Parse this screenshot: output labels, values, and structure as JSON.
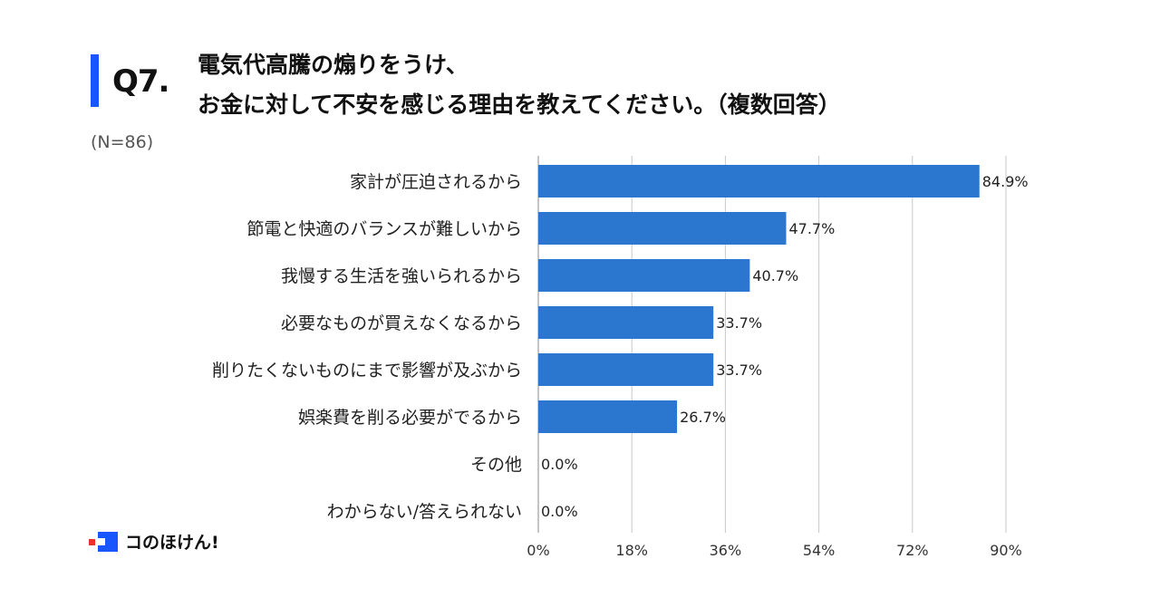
{
  "header": {
    "question_label": "Q7.",
    "title_line1": "電気代高騰の煽りをうけ、",
    "title_line2": "お金に対して不安を感じる理由を教えてください。（複数回答）",
    "sample_size": "(N=86)"
  },
  "colors": {
    "accent": "#1a56ff",
    "bar": "#2b77d0",
    "grid": "#c8c8c8",
    "logo_dot": "#e8322b"
  },
  "chart_data": {
    "type": "bar",
    "orientation": "horizontal",
    "categories": [
      "家計が圧迫されるから",
      "節電と快適のバランスが難しいから",
      "我慢する生活を強いられるから",
      "必要なものが買えなくなるから",
      "削りたくないものにまで影響が及ぶから",
      "娯楽費を削る必要がでるから",
      "その他",
      "わからない/答えられない"
    ],
    "values": [
      84.9,
      47.7,
      40.7,
      33.7,
      33.7,
      26.7,
      0.0,
      0.0
    ],
    "data_labels": [
      "84.9%",
      "47.7%",
      "40.7%",
      "33.7%",
      "33.7%",
      "26.7%",
      "0.0%",
      "0.0%"
    ],
    "xlim": [
      0,
      90
    ],
    "x_ticks": [
      0,
      18,
      36,
      54,
      72,
      90
    ],
    "x_tick_labels": [
      "0%",
      "18%",
      "36%",
      "54%",
      "72%",
      "90%"
    ],
    "grid": true,
    "legend": "none"
  },
  "logo": {
    "text": "コのほけん!",
    "icon": "konohoken-logo-icon"
  }
}
